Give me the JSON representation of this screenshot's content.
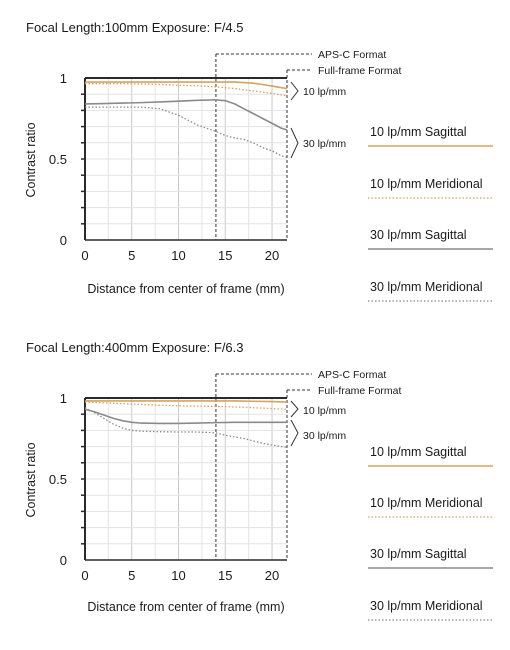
{
  "colors": {
    "sagittal10": "#d6a25e",
    "meridional10": "#d6a25e",
    "sagittal30": "#8a8a8a",
    "meridional30": "#8a8a8a",
    "grid": "#c9c9c9",
    "axis": "#2a2a2a"
  },
  "chart_data": [
    {
      "type": "line",
      "title": "Focal Length:100mm   Exposure: F/4.5",
      "xlabel": "Distance from center of frame (mm)",
      "ylabel": "Contrast ratio",
      "xlim": [
        0,
        21.6
      ],
      "ylim": [
        0,
        1
      ],
      "x_ticks": [
        0,
        5,
        10,
        15,
        20
      ],
      "y_ticks": [
        0,
        0.5,
        1
      ],
      "y_minor_step": 0.1,
      "grid": true,
      "aps_c_marker": 14,
      "full_frame_marker": 21.6,
      "aps_c_label": "APS-C Format",
      "full_frame_label": "Full-frame Format",
      "group_labels": [
        "10 lp/mm",
        "30 lp/mm"
      ],
      "series": [
        {
          "name": "10 lp/mm Sagittal",
          "style": "solid",
          "color_key": "sagittal10",
          "x": [
            0,
            2,
            4,
            6,
            8,
            10,
            12,
            14,
            16,
            17,
            18,
            19,
            20,
            21,
            21.6
          ],
          "y": [
            0.975,
            0.975,
            0.975,
            0.975,
            0.975,
            0.975,
            0.975,
            0.975,
            0.975,
            0.972,
            0.968,
            0.96,
            0.95,
            0.94,
            0.935
          ]
        },
        {
          "name": "10 lp/mm Meridional",
          "style": "dotted",
          "color_key": "meridional10",
          "x": [
            0,
            2,
            4,
            6,
            8,
            10,
            12,
            14,
            16,
            18,
            20,
            21.6
          ],
          "y": [
            0.965,
            0.965,
            0.965,
            0.963,
            0.96,
            0.955,
            0.952,
            0.945,
            0.935,
            0.92,
            0.905,
            0.89
          ]
        },
        {
          "name": "30 lp/mm Sagittal",
          "style": "solid",
          "color_key": "sagittal30",
          "x": [
            0,
            2,
            4,
            6,
            8,
            10,
            12,
            14,
            15,
            16,
            17,
            18,
            19,
            20,
            21,
            21.6
          ],
          "y": [
            0.84,
            0.842,
            0.845,
            0.848,
            0.852,
            0.857,
            0.862,
            0.865,
            0.86,
            0.84,
            0.81,
            0.78,
            0.75,
            0.72,
            0.69,
            0.68
          ]
        },
        {
          "name": "30 lp/mm Meridional",
          "style": "dotted",
          "color_key": "meridional30",
          "x": [
            0,
            2,
            4,
            6,
            8,
            9,
            10,
            11,
            12,
            13,
            14,
            15,
            16,
            17,
            18,
            19,
            20,
            21,
            21.6
          ],
          "y": [
            0.82,
            0.82,
            0.82,
            0.82,
            0.81,
            0.79,
            0.77,
            0.74,
            0.71,
            0.69,
            0.67,
            0.645,
            0.63,
            0.62,
            0.6,
            0.57,
            0.55,
            0.52,
            0.51
          ]
        }
      ]
    },
    {
      "type": "line",
      "title": "Focal Length:400mm   Exposure: F/6.3",
      "xlabel": "Distance from center of frame (mm)",
      "ylabel": "Contrast ratio",
      "xlim": [
        0,
        21.6
      ],
      "ylim": [
        0,
        1
      ],
      "x_ticks": [
        0,
        5,
        10,
        15,
        20
      ],
      "y_ticks": [
        0,
        0.5,
        1
      ],
      "y_minor_step": 0.1,
      "grid": true,
      "aps_c_marker": 14,
      "full_frame_marker": 21.6,
      "aps_c_label": "APS-C Format",
      "full_frame_label": "Full-frame Format",
      "group_labels": [
        "10 lp/mm",
        "30 lp/mm"
      ],
      "series": [
        {
          "name": "10 lp/mm Sagittal",
          "style": "solid",
          "color_key": "sagittal10",
          "x": [
            0,
            2,
            4,
            6,
            8,
            10,
            12,
            14,
            16,
            18,
            20,
            21.6
          ],
          "y": [
            0.982,
            0.982,
            0.982,
            0.982,
            0.982,
            0.982,
            0.982,
            0.982,
            0.982,
            0.98,
            0.978,
            0.975
          ]
        },
        {
          "name": "10 lp/mm Meridional",
          "style": "dotted",
          "color_key": "meridional10",
          "x": [
            0,
            2,
            4,
            6,
            8,
            10,
            12,
            14,
            16,
            18,
            20,
            21.6
          ],
          "y": [
            0.975,
            0.97,
            0.965,
            0.96,
            0.955,
            0.952,
            0.95,
            0.948,
            0.945,
            0.94,
            0.935,
            0.93
          ]
        },
        {
          "name": "30 lp/mm Sagittal",
          "style": "solid",
          "color_key": "sagittal30",
          "x": [
            0,
            1,
            2,
            3,
            4,
            5,
            6,
            8,
            10,
            12,
            14,
            16,
            18,
            20,
            21.6
          ],
          "y": [
            0.93,
            0.915,
            0.895,
            0.875,
            0.86,
            0.85,
            0.845,
            0.843,
            0.843,
            0.845,
            0.848,
            0.85,
            0.85,
            0.85,
            0.85
          ]
        },
        {
          "name": "30 lp/mm Meridional",
          "style": "dotted",
          "color_key": "meridional30",
          "x": [
            0,
            1,
            2,
            3,
            4,
            5,
            6,
            8,
            10,
            12,
            14,
            15,
            16,
            17,
            18,
            19,
            20,
            21,
            21.6
          ],
          "y": [
            0.94,
            0.91,
            0.875,
            0.84,
            0.815,
            0.8,
            0.795,
            0.792,
            0.79,
            0.79,
            0.785,
            0.77,
            0.76,
            0.75,
            0.735,
            0.72,
            0.71,
            0.7,
            0.695
          ]
        }
      ]
    }
  ]
}
